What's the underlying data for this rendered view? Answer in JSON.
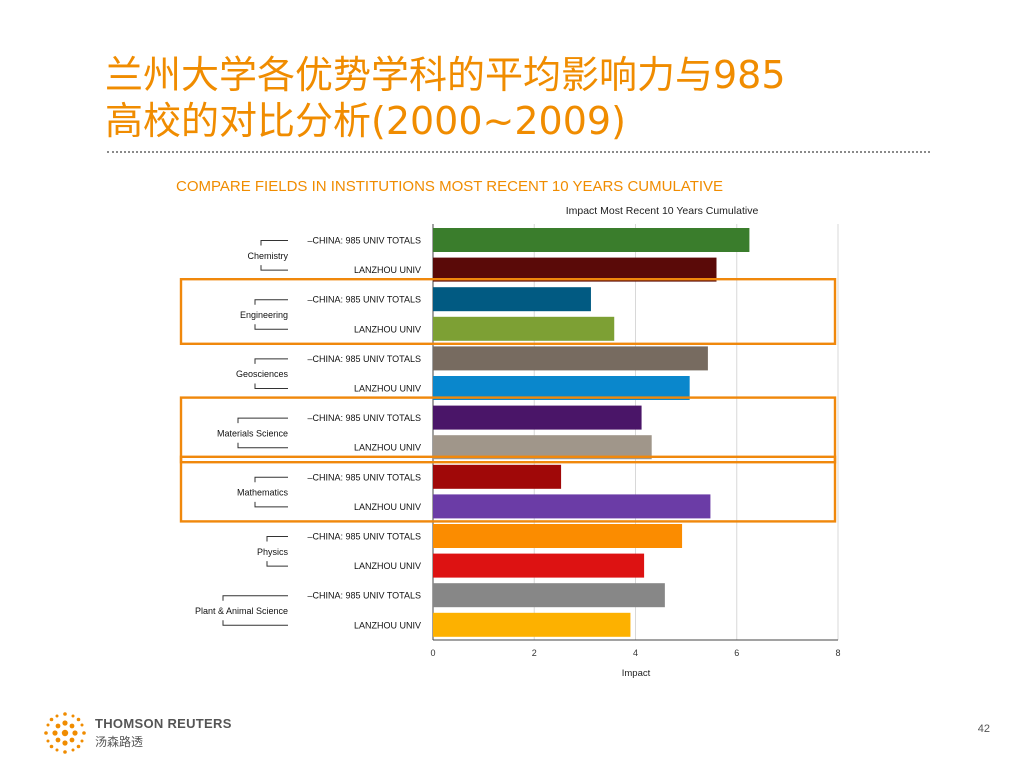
{
  "slide": {
    "title_line1": "兰州大学各优势学科的平均影响力与985",
    "title_line2": "高校的对比分析(2000~2009)",
    "page_number": "42"
  },
  "footer": {
    "brand_en": "THOMSON REUTERS",
    "brand_cn": "汤森路透"
  },
  "chart_data": {
    "type": "bar",
    "orientation": "horizontal",
    "heading": "COMPARE FIELDS IN INSTITUTIONS MOST RECENT 10 YEARS CUMULATIVE",
    "title": "Impact Most Recent 10 Years Cumulative",
    "xlabel": "Impact",
    "ylabel": "",
    "xlim": [
      0,
      8
    ],
    "xticks": [
      0,
      2,
      4,
      6,
      8
    ],
    "grid": true,
    "groups": [
      {
        "field": "Chemistry",
        "highlighted": false,
        "bars": [
          {
            "label": "CHINA: 985 UNIV TOTALS",
            "value": 6.25,
            "color": "#3a7d2c"
          },
          {
            "label": "LANZHOU UNIV",
            "value": 5.6,
            "color": "#5a0a08"
          }
        ]
      },
      {
        "field": "Engineering",
        "highlighted": true,
        "bars": [
          {
            "label": "CHINA: 985 UNIV TOTALS",
            "value": 3.12,
            "color": "#015a82"
          },
          {
            "label": "LANZHOU UNIV",
            "value": 3.58,
            "color": "#7da034"
          }
        ]
      },
      {
        "field": "Geosciences",
        "highlighted": false,
        "bars": [
          {
            "label": "CHINA: 985 UNIV TOTALS",
            "value": 5.43,
            "color": "#776b60"
          },
          {
            "label": "LANZHOU UNIV",
            "value": 5.07,
            "color": "#0a87cc"
          }
        ]
      },
      {
        "field": "Materials Science",
        "highlighted": true,
        "bars": [
          {
            "label": "CHINA: 985 UNIV TOTALS",
            "value": 4.12,
            "color": "#4a1568"
          },
          {
            "label": "LANZHOU UNIV",
            "value": 4.32,
            "color": "#a0968a"
          }
        ]
      },
      {
        "field": "Mathematics",
        "highlighted": true,
        "bars": [
          {
            "label": "CHINA: 985 UNIV TOTALS",
            "value": 2.53,
            "color": "#a00808"
          },
          {
            "label": "LANZHOU UNIV",
            "value": 5.48,
            "color": "#6b3ca6"
          }
        ]
      },
      {
        "field": "Physics",
        "highlighted": false,
        "bars": [
          {
            "label": "CHINA: 985 UNIV TOTALS",
            "value": 4.92,
            "color": "#fb8c00"
          },
          {
            "label": "LANZHOU UNIV",
            "value": 4.17,
            "color": "#dd1212"
          }
        ]
      },
      {
        "field": "Plant & Animal Science",
        "highlighted": false,
        "bars": [
          {
            "label": "CHINA: 985 UNIV TOTALS",
            "value": 4.58,
            "color": "#878787"
          },
          {
            "label": "LANZHOU UNIV",
            "value": 3.9,
            "color": "#fdb100"
          }
        ]
      }
    ]
  },
  "colors": {
    "accent": "#f08c00",
    "highlight_box": "#f0880c",
    "grid": "#d8d8d8",
    "axis": "#444444"
  }
}
